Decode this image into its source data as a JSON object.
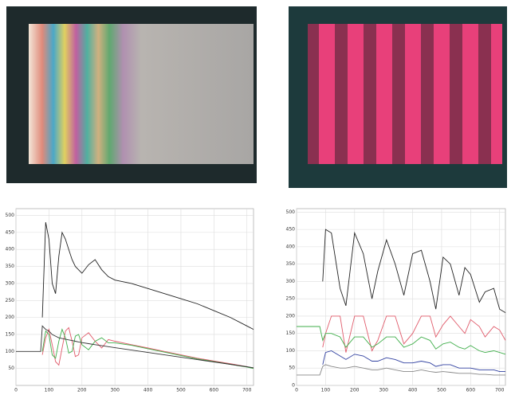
{
  "chart_data": [
    {
      "type": "line",
      "x": [
        0,
        40,
        75,
        80,
        90,
        100,
        110,
        120,
        130,
        140,
        150,
        160,
        170,
        180,
        190,
        200,
        220,
        240,
        260,
        280,
        300,
        350,
        400,
        450,
        500,
        550,
        600,
        650,
        700,
        720
      ],
      "xlim": [
        0,
        720
      ],
      "ylim": [
        0,
        520
      ],
      "xticks": [
        0,
        100,
        200,
        300,
        400,
        500,
        600,
        700
      ],
      "yticks": [
        50,
        100,
        150,
        200,
        250,
        300,
        350,
        400,
        450,
        500
      ],
      "grid": true,
      "series": [
        {
          "color": "#222222",
          "values": [
            null,
            null,
            null,
            200,
            480,
            430,
            300,
            270,
            380,
            450,
            430,
            400,
            370,
            350,
            340,
            330,
            355,
            370,
            340,
            320,
            310,
            300,
            285,
            270,
            255,
            240,
            220,
            200,
            175,
            165
          ]
        },
        {
          "color": "#e05a6a",
          "values": [
            null,
            null,
            null,
            90,
            140,
            165,
            120,
            70,
            60,
            110,
            160,
            170,
            130,
            85,
            90,
            140,
            155,
            130,
            110,
            135,
            130,
            120,
            110,
            100,
            90,
            80,
            72,
            64,
            55,
            50
          ]
        },
        {
          "color": "#3fae4a",
          "values": [
            null,
            null,
            null,
            100,
            160,
            150,
            90,
            80,
            130,
            165,
            140,
            95,
            100,
            145,
            150,
            120,
            105,
            130,
            140,
            125,
            125,
            118,
            108,
            98,
            88,
            78,
            70,
            62,
            54,
            50
          ]
        },
        {
          "color": "#333333",
          "values": [
            100,
            100,
            100,
            175,
            165,
            160,
            150,
            145,
            140,
            138,
            136,
            134,
            132,
            130,
            128,
            126,
            123,
            120,
            117,
            114,
            111,
            104,
            97,
            90,
            83,
            76,
            69,
            62,
            55,
            52
          ]
        }
      ]
    },
    {
      "type": "line",
      "x": [
        0,
        50,
        80,
        90,
        100,
        120,
        150,
        170,
        200,
        230,
        260,
        280,
        310,
        340,
        370,
        400,
        430,
        460,
        480,
        505,
        530,
        560,
        580,
        600,
        630,
        650,
        680,
        700,
        720
      ],
      "xlim": [
        0,
        720
      ],
      "ylim": [
        0,
        510
      ],
      "xticks": [
        0,
        100,
        200,
        300,
        400,
        500,
        600,
        700
      ],
      "yticks": [
        0,
        50,
        100,
        150,
        200,
        250,
        300,
        350,
        400,
        450,
        500
      ],
      "grid": true,
      "series": [
        {
          "color": "#222222",
          "values": [
            null,
            null,
            null,
            300,
            450,
            440,
            280,
            230,
            440,
            380,
            250,
            330,
            420,
            350,
            260,
            380,
            390,
            300,
            220,
            370,
            350,
            260,
            340,
            320,
            240,
            270,
            280,
            220,
            210
          ]
        },
        {
          "color": "#e05a6a",
          "values": [
            null,
            null,
            null,
            110,
            150,
            200,
            200,
            95,
            200,
            200,
            100,
            130,
            200,
            200,
            120,
            150,
            200,
            200,
            140,
            175,
            200,
            170,
            150,
            190,
            170,
            140,
            170,
            160,
            130
          ]
        },
        {
          "color": "#3fae4a",
          "values": [
            170,
            170,
            170,
            130,
            150,
            150,
            140,
            110,
            140,
            140,
            110,
            120,
            140,
            140,
            110,
            120,
            140,
            130,
            105,
            120,
            125,
            110,
            105,
            115,
            100,
            95,
            100,
            95,
            90
          ]
        },
        {
          "color": "#3040a0",
          "values": [
            null,
            null,
            null,
            60,
            95,
            100,
            85,
            75,
            90,
            85,
            70,
            70,
            80,
            75,
            65,
            65,
            70,
            65,
            55,
            60,
            60,
            50,
            50,
            50,
            45,
            45,
            45,
            40,
            40
          ]
        },
        {
          "color": "#888888",
          "values": [
            30,
            30,
            30,
            55,
            60,
            55,
            50,
            50,
            55,
            50,
            45,
            45,
            50,
            45,
            40,
            40,
            45,
            40,
            38,
            40,
            38,
            35,
            35,
            35,
            32,
            32,
            30,
            30,
            30
          ]
        }
      ]
    }
  ]
}
